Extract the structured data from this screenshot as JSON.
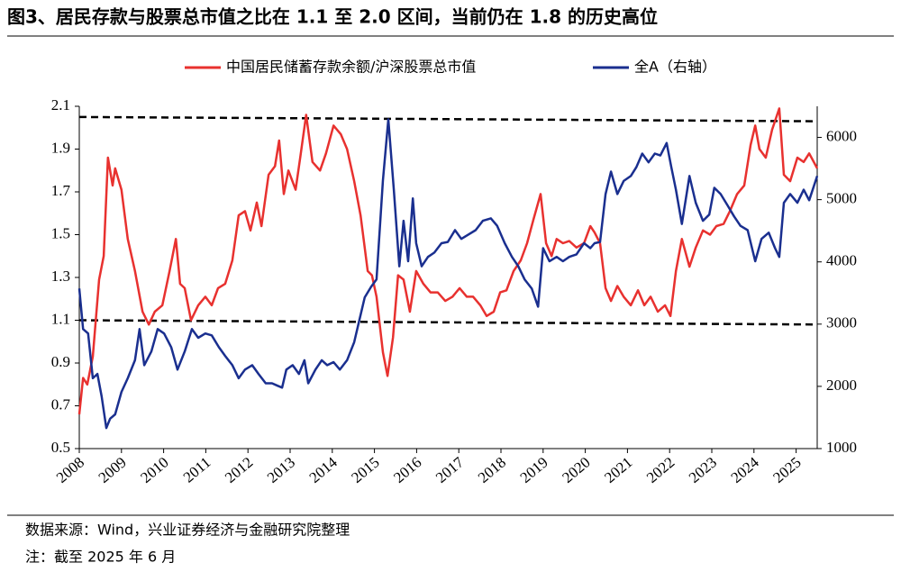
{
  "chart_data": {
    "type": "line",
    "title": "图3、居民存款与股票总市值之比在 1.1 至 2.0 区间，当前仍在 1.8 的历史高位",
    "source": "数据来源：Wind，兴业证券经济与金融研究院整理",
    "note": "注：截至 2025 年 6 月",
    "xlim": [
      2008,
      2025.5
    ],
    "xticks": [
      2008,
      2009,
      2010,
      2011,
      2012,
      2013,
      2014,
      2015,
      2016,
      2017,
      2018,
      2019,
      2020,
      2021,
      2022,
      2023,
      2024,
      2025
    ],
    "ylim": [
      0.5,
      2.1
    ],
    "yticks": [
      0.5,
      0.7,
      0.9,
      1.1,
      1.3,
      1.5,
      1.7,
      1.9,
      2.1
    ],
    "y2lim": [
      1000,
      6500
    ],
    "y2ticks": [
      1000,
      2000,
      3000,
      4000,
      5000,
      6000
    ],
    "grid": false,
    "legend": "top",
    "reference_lines": [
      {
        "color": "#000000",
        "style": "dashed",
        "values": [
          2.05,
          2.03
        ]
      },
      {
        "color": "#000000",
        "style": "dashed",
        "values": [
          1.1,
          1.08
        ]
      }
    ],
    "series": [
      {
        "name": "中国居民储蓄存款余额/沪深股票总市值",
        "color": "#e8312f",
        "axis": "y",
        "x": [
          2008.0,
          2008.09,
          2008.19,
          2008.32,
          2008.47,
          2008.58,
          2008.68,
          2008.79,
          2008.85,
          2009.0,
          2009.15,
          2009.32,
          2009.5,
          2009.65,
          2009.79,
          2009.97,
          2010.14,
          2010.29,
          2010.39,
          2010.5,
          2010.65,
          2010.82,
          2010.99,
          2011.14,
          2011.29,
          2011.46,
          2011.63,
          2011.78,
          2011.93,
          2012.06,
          2012.21,
          2012.32,
          2012.49,
          2012.64,
          2012.74,
          2012.85,
          2012.96,
          2013.13,
          2013.24,
          2013.38,
          2013.53,
          2013.71,
          2013.85,
          2014.03,
          2014.2,
          2014.35,
          2014.52,
          2014.67,
          2014.84,
          2014.94,
          2015.05,
          2015.2,
          2015.31,
          2015.44,
          2015.56,
          2015.69,
          2015.84,
          2015.99,
          2016.16,
          2016.33,
          2016.5,
          2016.68,
          2016.85,
          2017.02,
          2017.19,
          2017.34,
          2017.51,
          2017.66,
          2017.83,
          2017.98,
          2018.13,
          2018.3,
          2018.47,
          2018.62,
          2018.77,
          2018.94,
          2019.07,
          2019.2,
          2019.32,
          2019.47,
          2019.62,
          2019.79,
          2019.97,
          2020.12,
          2020.22,
          2020.35,
          2020.48,
          2020.61,
          2020.76,
          2020.91,
          2021.08,
          2021.25,
          2021.4,
          2021.55,
          2021.72,
          2021.89,
          2022.02,
          2022.15,
          2022.29,
          2022.47,
          2022.62,
          2022.79,
          2022.96,
          2023.11,
          2023.28,
          2023.43,
          2023.6,
          2023.77,
          2023.92,
          2024.03,
          2024.13,
          2024.28,
          2024.43,
          2024.6,
          2024.71,
          2024.86,
          2025.03,
          2025.18,
          2025.31,
          2025.5
        ],
        "values": [
          0.66,
          0.83,
          0.8,
          0.93,
          1.29,
          1.4,
          1.86,
          1.73,
          1.81,
          1.71,
          1.48,
          1.33,
          1.14,
          1.08,
          1.14,
          1.17,
          1.33,
          1.48,
          1.27,
          1.25,
          1.1,
          1.17,
          1.21,
          1.17,
          1.25,
          1.27,
          1.38,
          1.59,
          1.61,
          1.52,
          1.65,
          1.54,
          1.78,
          1.82,
          1.94,
          1.69,
          1.8,
          1.71,
          1.86,
          2.06,
          1.84,
          1.8,
          1.88,
          2.01,
          1.97,
          1.9,
          1.75,
          1.59,
          1.33,
          1.31,
          1.21,
          0.95,
          0.84,
          1.02,
          1.31,
          1.29,
          1.14,
          1.33,
          1.27,
          1.23,
          1.23,
          1.19,
          1.21,
          1.25,
          1.21,
          1.21,
          1.17,
          1.12,
          1.14,
          1.23,
          1.24,
          1.33,
          1.38,
          1.46,
          1.57,
          1.69,
          1.46,
          1.4,
          1.48,
          1.46,
          1.47,
          1.44,
          1.46,
          1.54,
          1.51,
          1.46,
          1.25,
          1.19,
          1.26,
          1.21,
          1.17,
          1.24,
          1.17,
          1.21,
          1.14,
          1.17,
          1.12,
          1.33,
          1.48,
          1.35,
          1.44,
          1.52,
          1.5,
          1.54,
          1.55,
          1.61,
          1.69,
          1.73,
          1.92,
          2.01,
          1.9,
          1.86,
          1.99,
          2.09,
          1.78,
          1.75,
          1.86,
          1.84,
          1.88,
          1.81
        ]
      },
      {
        "name": "全A（右轴）",
        "color": "#1a2f8f",
        "axis": "y2",
        "x": [
          2008.0,
          2008.09,
          2008.21,
          2008.32,
          2008.43,
          2008.53,
          2008.64,
          2008.73,
          2008.85,
          2009.0,
          2009.15,
          2009.32,
          2009.43,
          2009.54,
          2009.71,
          2009.86,
          2010.01,
          2010.18,
          2010.33,
          2010.5,
          2010.67,
          2010.82,
          2010.99,
          2011.14,
          2011.31,
          2011.46,
          2011.63,
          2011.78,
          2011.93,
          2012.1,
          2012.25,
          2012.42,
          2012.57,
          2012.7,
          2012.81,
          2012.91,
          2013.06,
          2013.21,
          2013.34,
          2013.43,
          2013.6,
          2013.75,
          2013.88,
          2014.03,
          2014.18,
          2014.35,
          2014.52,
          2014.62,
          2014.77,
          2014.92,
          2015.05,
          2015.2,
          2015.33,
          2015.46,
          2015.59,
          2015.69,
          2015.8,
          2015.91,
          2015.99,
          2016.12,
          2016.27,
          2016.42,
          2016.59,
          2016.74,
          2016.91,
          2017.06,
          2017.23,
          2017.4,
          2017.57,
          2017.76,
          2017.91,
          2018.09,
          2018.26,
          2018.41,
          2018.56,
          2018.73,
          2018.88,
          2019.0,
          2019.15,
          2019.32,
          2019.47,
          2019.62,
          2019.79,
          2019.97,
          2020.12,
          2020.22,
          2020.35,
          2020.48,
          2020.61,
          2020.76,
          2020.91,
          2021.08,
          2021.21,
          2021.35,
          2021.5,
          2021.65,
          2021.78,
          2021.93,
          2022.04,
          2022.15,
          2022.29,
          2022.47,
          2022.62,
          2022.79,
          2022.94,
          2023.06,
          2023.21,
          2023.38,
          2023.53,
          2023.68,
          2023.85,
          2024.03,
          2024.18,
          2024.35,
          2024.5,
          2024.6,
          2024.71,
          2024.86,
          2025.03,
          2025.18,
          2025.31,
          2025.5
        ],
        "values": [
          3572,
          2920,
          2850,
          2130,
          2200,
          1840,
          1330,
          1480,
          1550,
          1910,
          2130,
          2420,
          2920,
          2340,
          2560,
          2920,
          2850,
          2630,
          2270,
          2560,
          2920,
          2780,
          2850,
          2820,
          2630,
          2490,
          2340,
          2130,
          2270,
          2340,
          2200,
          2050,
          2050,
          2010,
          1980,
          2270,
          2340,
          2200,
          2420,
          2050,
          2270,
          2420,
          2340,
          2390,
          2270,
          2420,
          2710,
          3000,
          3430,
          3600,
          3720,
          5310,
          6290,
          5160,
          3930,
          4660,
          4010,
          5020,
          4300,
          3930,
          4080,
          4150,
          4300,
          4320,
          4510,
          4370,
          4440,
          4510,
          4660,
          4700,
          4580,
          4300,
          4080,
          3930,
          3720,
          3570,
          3280,
          4220,
          4010,
          4080,
          4010,
          4080,
          4120,
          4300,
          4220,
          4300,
          4320,
          5090,
          5450,
          5090,
          5300,
          5380,
          5520,
          5740,
          5600,
          5740,
          5710,
          5910,
          5520,
          5160,
          4610,
          5380,
          4950,
          4660,
          4760,
          5190,
          5090,
          4900,
          4730,
          4580,
          4510,
          4010,
          4370,
          4470,
          4220,
          4080,
          4950,
          5090,
          4950,
          5160,
          4990,
          5380
        ]
      }
    ]
  }
}
